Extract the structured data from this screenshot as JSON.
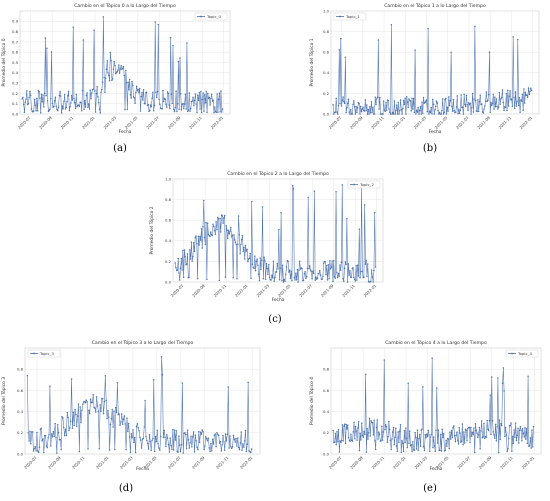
{
  "page": {
    "title": ""
  },
  "captions": [
    "(a)",
    "(b)",
    "(c)",
    "(d)",
    "(e)"
  ],
  "chart_data": [
    {
      "type": "line",
      "title": "Cambio en el Tópico 0 a lo Largo del Tiempo",
      "xlabel": "Fecha",
      "ylabel": "Promedio del Tópico 0",
      "legend": "Topic_0",
      "legend_placement": "top-right",
      "ylim": [
        0,
        1.0
      ],
      "yticks": [
        "0.0",
        "0.1",
        "0.2",
        "0.3",
        "0.4",
        "0.5",
        "0.6",
        "0.7",
        "0.8",
        "0.9"
      ],
      "xticks": [
        "2020-07",
        "2020-09",
        "2020-11",
        "2021-01",
        "2021-03",
        "2021-05",
        "2021-07",
        "2021-09",
        "2021-11",
        "2022-01"
      ],
      "xlim": [
        "2020-06",
        "2022-01"
      ],
      "grid": true,
      "series": [
        {
          "name": "Topic_0",
          "color": "#4c72b0",
          "x": [],
          "y": []
        }
      ]
    },
    {
      "type": "line",
      "title": "Cambio en el Tópico 1 a lo Largo del Tiempo",
      "xlabel": "Fecha",
      "ylabel": "Promedio del Tópico 1",
      "legend": "Topic_1",
      "legend_placement": "top-left",
      "ylim": [
        0,
        1.0
      ],
      "yticks": [
        "0.0",
        "0.2",
        "0.4",
        "0.6",
        "0.8",
        "1.0"
      ],
      "xticks": [
        "2020-07",
        "2020-09",
        "2020-11",
        "2021-01",
        "2021-03",
        "2021-05",
        "2021-07",
        "2021-09",
        "2021-11",
        "2022-01"
      ],
      "xlim": [
        "2020-06",
        "2022-01"
      ],
      "grid": true,
      "series": [
        {
          "name": "Topic_1",
          "color": "#4c72b0",
          "x": [],
          "y": []
        }
      ]
    },
    {
      "type": "line",
      "title": "Cambio en el Tópico 2 a lo Largo del Tiempo",
      "xlabel": "Fecha",
      "ylabel": "Promedio del Tópico 2",
      "legend": "Topic_2",
      "legend_placement": "top-right",
      "ylim": [
        0,
        1.0
      ],
      "yticks": [
        "0.0",
        "0.2",
        "0.4",
        "0.6",
        "0.8",
        "1.0"
      ],
      "xticks": [
        "2020-07",
        "2020-09",
        "2020-11",
        "2021-01",
        "2021-03",
        "2021-05",
        "2021-07",
        "2021-09",
        "2021-11",
        "2022-01"
      ],
      "xlim": [
        "2020-06",
        "2022-01"
      ],
      "grid": true,
      "series": [
        {
          "name": "Topic_2",
          "color": "#4c72b0",
          "x": [],
          "y": []
        }
      ]
    },
    {
      "type": "line",
      "title": "Cambio en el Tópico 3 a lo Largo del Tiempo",
      "xlabel": "Fecha",
      "ylabel": "Promedio del Tópico 3",
      "legend": "Topic_3",
      "legend_placement": "top-left",
      "ylim": [
        0,
        1.0
      ],
      "yticks": [
        "0.0",
        "0.2",
        "0.4",
        "0.6",
        "0.8"
      ],
      "xticks": [
        "2020-07",
        "2020-09",
        "2020-11",
        "2021-01",
        "2021-03",
        "2021-05",
        "2021-07",
        "2021-09",
        "2021-11",
        "2022-01"
      ],
      "xlim": [
        "2020-06",
        "2022-01"
      ],
      "grid": true,
      "series": [
        {
          "name": "Topic_3",
          "color": "#4c72b0",
          "x": [],
          "y": []
        }
      ]
    },
    {
      "type": "line",
      "title": "Cambio en el Tópico 4 a lo Largo del Tiempo",
      "xlabel": "Fecha",
      "ylabel": "Promedio del Tópico 4",
      "legend": "Topic_4",
      "legend_placement": "top-right",
      "ylim": [
        0,
        1.0
      ],
      "yticks": [
        "0.0",
        "0.2",
        "0.4",
        "0.6",
        "0.8"
      ],
      "xticks": [
        "2020-07",
        "2020-09",
        "2020-11",
        "2021-01",
        "2021-03",
        "2021-05",
        "2021-07",
        "2021-09",
        "2021-11",
        "2022-01"
      ],
      "xlim": [
        "2020-06",
        "2022-01"
      ],
      "grid": true,
      "series": [
        {
          "name": "Topic_4",
          "color": "#4c72b0",
          "x": [],
          "y": []
        }
      ]
    }
  ]
}
